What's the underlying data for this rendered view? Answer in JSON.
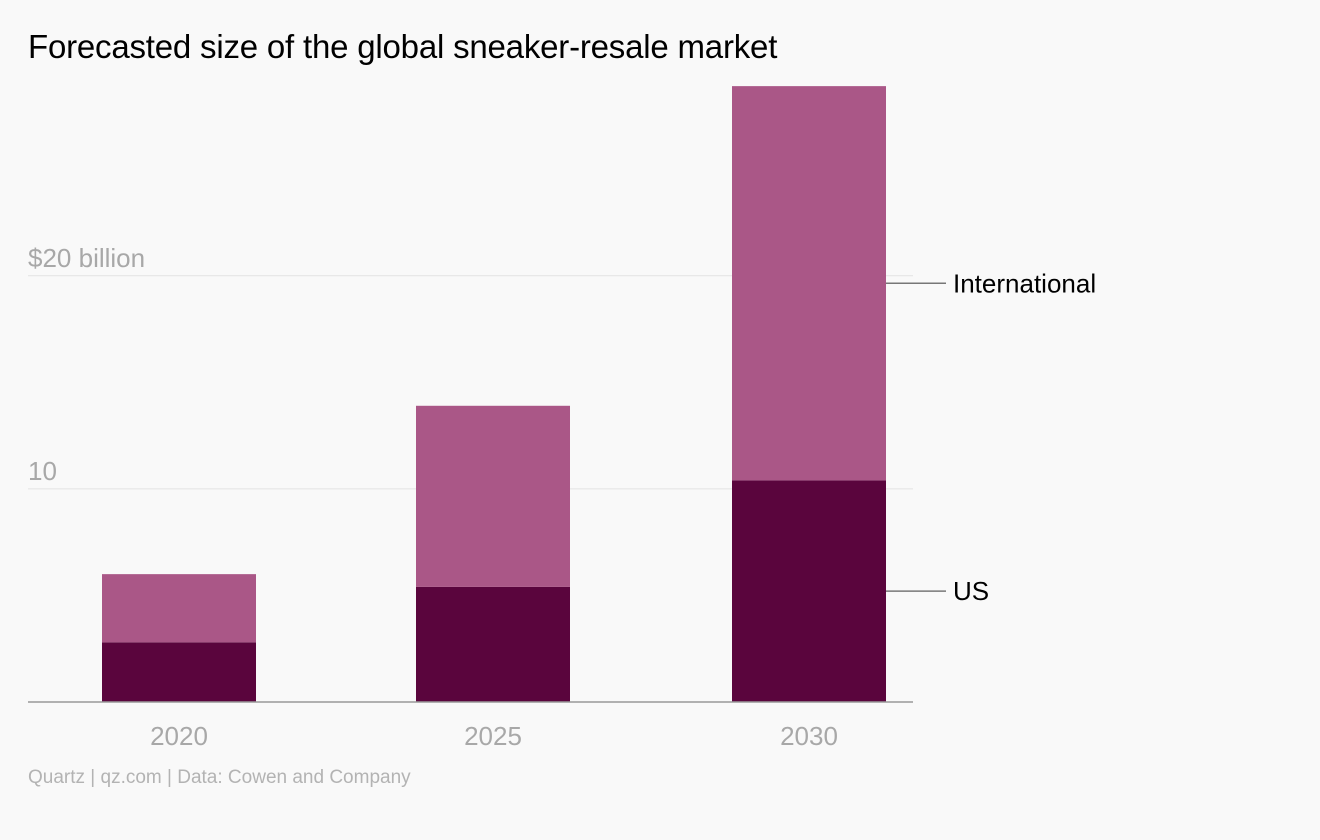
{
  "chart_data": {
    "type": "bar",
    "stacked": true,
    "title": "Forecasted size of the global sneaker-resale market",
    "categories": [
      "2020",
      "2025",
      "2030"
    ],
    "series": [
      {
        "name": "US",
        "values": [
          2.8,
          5.4,
          10.4
        ],
        "color": "#5a053d"
      },
      {
        "name": "International",
        "values": [
          3.2,
          8.5,
          18.5
        ],
        "color": "#aa5787"
      }
    ],
    "yticks": [
      {
        "value": 10,
        "label": "10"
      },
      {
        "value": 20,
        "label": "$20 billion"
      }
    ],
    "ylim": [
      0,
      29
    ],
    "grid": true,
    "legend": "direct labels, right"
  },
  "source": "Quartz | qz.com | Data: Cowen and Company"
}
